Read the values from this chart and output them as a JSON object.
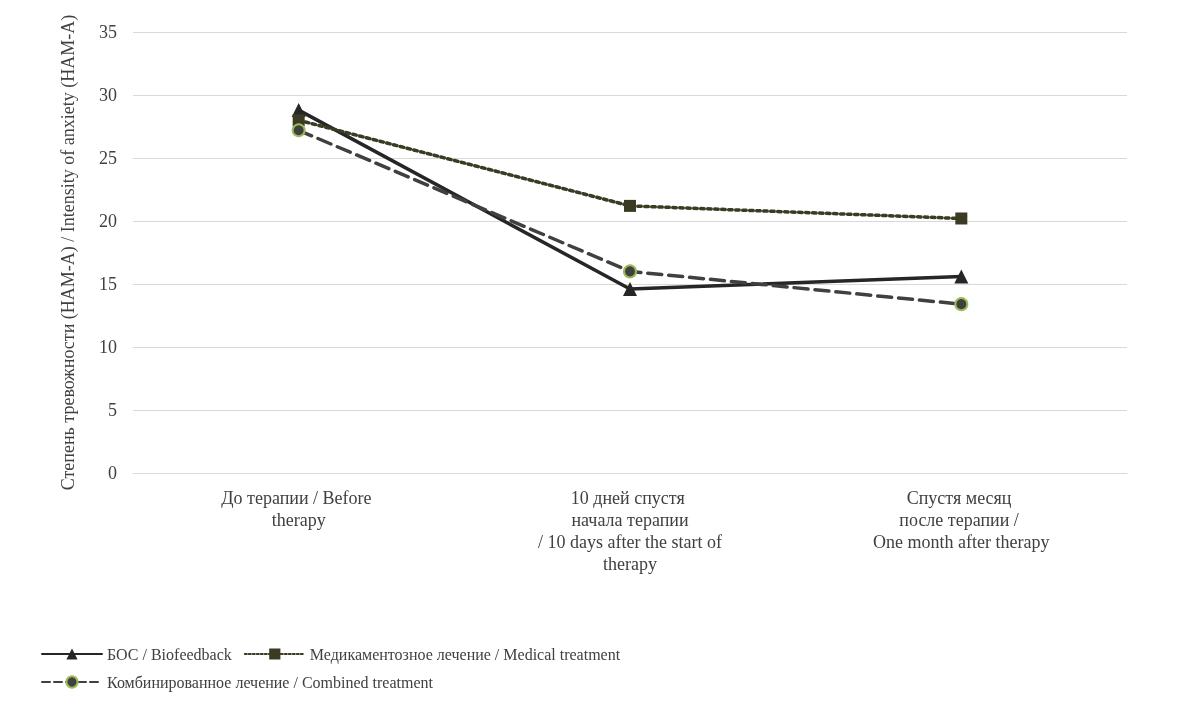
{
  "chart_data": {
    "type": "line",
    "ylabel": "Степень тревожности (HAM-A) / Intensity of anxiety (HAM-A)",
    "categories": [
      "До терапии / Before therapy",
      "10 дней спустя начала терапии / 10 days after the start of therapy",
      "Спустя месяц после терапии / One month after therapy"
    ],
    "series": [
      {
        "name": "БОС / Biofeedback",
        "color": "#262626",
        "marker": "triangle",
        "line_style": "solid",
        "values": [
          28.8,
          14.6,
          15.6
        ]
      },
      {
        "name": "Медикаментозное лечение / Medical treatment",
        "color": "#3b3a22",
        "marker": "square",
        "line_style": "dotted",
        "values": [
          28.0,
          21.2,
          20.2
        ]
      },
      {
        "name": "Комбинированное лечение / Combined treatment",
        "color": "#404040",
        "marker": "circle",
        "line_style": "dashed",
        "values": [
          27.2,
          16.0,
          13.4
        ]
      }
    ],
    "ylim": [
      0,
      35
    ],
    "yticks": [
      0,
      5,
      10,
      15,
      20,
      25,
      30,
      35
    ],
    "grid": "y",
    "legend": "bottom"
  }
}
